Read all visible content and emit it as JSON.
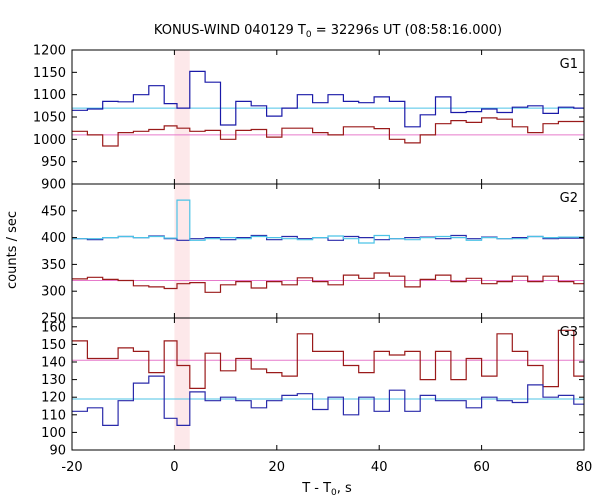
{
  "title": {
    "prefix": "KONUS-WIND 040129 T",
    "sub": "0",
    "suffix": " = 32296s UT (08:58:16.000)"
  },
  "chart_data": {
    "type": "line",
    "step": true,
    "xlabel": {
      "prefix": "T - T",
      "sub": "0",
      "suffix": ", s"
    },
    "ylabel": "counts / sec",
    "xlim": [
      -20,
      80
    ],
    "xticks": [
      "-20",
      "0",
      "20",
      "40",
      "60",
      "80"
    ],
    "highlight_band": {
      "x0": 0,
      "x1": 3,
      "color": "#fde8ea"
    },
    "panels": [
      {
        "label": "G1",
        "ylim": [
          900,
          1200
        ],
        "yticks": [
          "900",
          "950",
          "1000",
          "1050",
          "1100",
          "1150",
          "1200"
        ],
        "series": [
          {
            "color": "#1a1aa8",
            "x": [
              -20,
              -17,
              -14,
              -11,
              -8,
              -5,
              -2,
              0.5,
              3,
              6,
              9,
              12,
              15,
              18,
              21,
              24,
              27,
              30,
              33,
              36,
              39,
              42,
              45,
              48,
              51,
              54,
              57,
              60,
              63,
              66,
              69,
              72,
              75,
              78,
              80
            ],
            "y": [
              1065,
              1068,
              1085,
              1084,
              1100,
              1120,
              1080,
              1070,
              1152,
              1128,
              1032,
              1085,
              1075,
              1052,
              1070,
              1100,
              1082,
              1100,
              1085,
              1082,
              1095,
              1085,
              1028,
              1055,
              1095,
              1060,
              1062,
              1068,
              1060,
              1072,
              1075,
              1058,
              1072,
              1070,
              1070
            ]
          },
          {
            "color": "#9a1a1a",
            "x": [
              -20,
              -17,
              -14,
              -11,
              -8,
              -5,
              -2,
              0.5,
              3,
              6,
              9,
              12,
              15,
              18,
              21,
              24,
              27,
              30,
              33,
              36,
              39,
              42,
              45,
              48,
              51,
              54,
              57,
              60,
              63,
              66,
              69,
              72,
              75,
              78,
              80
            ],
            "y": [
              1018,
              1010,
              985,
              1015,
              1018,
              1022,
              1030,
              1025,
              1018,
              1020,
              1000,
              1020,
              1022,
              1005,
              1025,
              1025,
              1015,
              1010,
              1028,
              1028,
              1024,
              1000,
              992,
              1010,
              1035,
              1042,
              1038,
              1048,
              1045,
              1028,
              1015,
              1035,
              1040,
              1040,
              1040
            ]
          }
        ],
        "refs": [
          {
            "color": "#4cc3e6",
            "y": 1070
          },
          {
            "color": "#e67acb",
            "y": 1010
          }
        ]
      },
      {
        "label": "G2",
        "ylim": [
          250,
          500
        ],
        "yticks": [
          "250",
          "300",
          "350",
          "400",
          "450"
        ],
        "series": [
          {
            "color": "#2a2aaa",
            "x": [
              -20,
              -17,
              -14,
              -11,
              -8,
              -5,
              -2,
              0.5,
              3,
              6,
              9,
              12,
              15,
              18,
              21,
              24,
              27,
              30,
              33,
              36,
              39,
              42,
              45,
              48,
              51,
              54,
              57,
              60,
              63,
              66,
              69,
              72,
              75,
              78,
              80
            ],
            "y": [
              398,
              396,
              400,
              402,
              400,
              403,
              398,
              395,
              398,
              400,
              396,
              400,
              404,
              396,
              402,
              398,
              400,
              395,
              402,
              400,
              396,
              398,
              400,
              401,
              398,
              404,
              398,
              401,
              398,
              400,
              402,
              398,
              399,
              399,
              399
            ]
          },
          {
            "color": "#4cc3e6",
            "x": [
              -20,
              -17,
              -14,
              -11,
              -8,
              -5,
              -2,
              0.5,
              3,
              6,
              9,
              12,
              15,
              18,
              21,
              24,
              27,
              30,
              33,
              36,
              39,
              42,
              45,
              48,
              51,
              54,
              57,
              60,
              63,
              66,
              69,
              72,
              75,
              78,
              80
            ],
            "y": [
              398,
              398,
              400,
              402,
              400,
              402,
              399,
              470,
              395,
              398,
              400,
              398,
              402,
              400,
              398,
              396,
              400,
              403,
              398,
              390,
              404,
              398,
              396,
              400,
              402,
              400,
              395,
              400,
              398,
              398,
              402,
              400,
              401,
              401,
              401
            ]
          },
          {
            "color": "#9a1a1a",
            "x": [
              -20,
              -17,
              -14,
              -11,
              -8,
              -5,
              -2,
              0.5,
              3,
              6,
              9,
              12,
              15,
              18,
              21,
              24,
              27,
              30,
              33,
              36,
              39,
              42,
              45,
              48,
              51,
              54,
              57,
              60,
              63,
              66,
              69,
              72,
              75,
              78,
              80
            ],
            "y": [
              323,
              326,
              322,
              320,
              310,
              308,
              305,
              314,
              316,
              298,
              312,
              318,
              306,
              318,
              312,
              325,
              318,
              312,
              330,
              324,
              334,
              328,
              308,
              322,
              330,
              318,
              324,
              314,
              318,
              328,
              318,
              328,
              318,
              314,
              314
            ]
          }
        ],
        "refs": [
          {
            "color": "#e67acb",
            "y": 320
          }
        ]
      },
      {
        "label": "G3",
        "ylim": [
          90,
          165
        ],
        "yticks": [
          "90",
          "100",
          "110",
          "120",
          "130",
          "140",
          "150",
          "160"
        ],
        "series": [
          {
            "color": "#9a1a1a",
            "x": [
              -20,
              -17,
              -14,
              -11,
              -8,
              -5,
              -2,
              0.5,
              3,
              6,
              9,
              12,
              15,
              18,
              21,
              24,
              27,
              30,
              33,
              36,
              39,
              42,
              45,
              48,
              51,
              54,
              57,
              60,
              63,
              66,
              69,
              72,
              75,
              78,
              80
            ],
            "y": [
              152,
              142,
              142,
              148,
              146,
              134,
              152,
              138,
              125,
              145,
              135,
              142,
              136,
              134,
              132,
              156,
              146,
              146,
              138,
              134,
              146,
              144,
              146,
              130,
              146,
              130,
              142,
              132,
              156,
              146,
              138,
              126,
              158,
              132,
              152
            ]
          },
          {
            "color": "#2a2aaa",
            "x": [
              -20,
              -17,
              -14,
              -11,
              -8,
              -5,
              -2,
              0.5,
              3,
              6,
              9,
              12,
              15,
              18,
              21,
              24,
              27,
              30,
              33,
              36,
              39,
              42,
              45,
              48,
              51,
              54,
              57,
              60,
              63,
              66,
              69,
              72,
              75,
              78,
              80
            ],
            "y": [
              112,
              114,
              104,
              118,
              128,
              132,
              108,
              104,
              123,
              118,
              120,
              118,
              114,
              118,
              121,
              122,
              113,
              120,
              110,
              120,
              112,
              124,
              112,
              121,
              118,
              118,
              114,
              120,
              118,
              117,
              127,
              120,
              121,
              116,
              116
            ]
          }
        ],
        "refs": [
          {
            "color": "#e67acb",
            "y": 141
          },
          {
            "color": "#4cc3e6",
            "y": 119
          }
        ]
      }
    ]
  }
}
